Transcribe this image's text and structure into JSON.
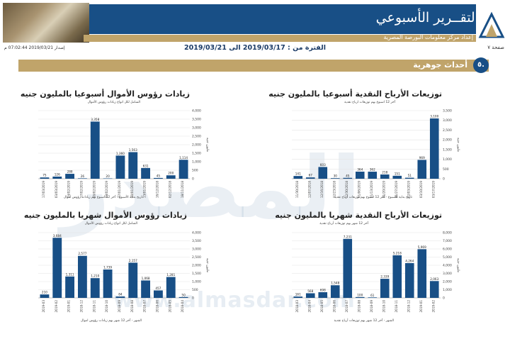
{
  "header": {
    "title": "التقــرير الأسبوعي",
    "subtitle": "إعداد مركز معلومات البورصة المصرية"
  },
  "info": {
    "page": "صفحة ٧",
    "period": "الفترة من : 2019/03/17 الى 2019/03/21",
    "issued": "إصدار 2019/03/21 07:02:44 م"
  },
  "section": {
    "number": "٥.",
    "title": "أحداث جوهرية"
  },
  "watermark": {
    "big": "المصدر",
    "url": "www.almasdar.com"
  },
  "colors": {
    "banner": "#184f86",
    "gold": "#c0a46a",
    "bar": "#184f86"
  },
  "chart_data": [
    {
      "id": "weekly-dividends",
      "type": "bar",
      "title": "توزيعات الأرباح النقدية أسبوعيا بالمليون جنيه",
      "subtitle": "آخر 12 اسبوع بهم توزيعات ارباح نقدية",
      "xlabel": "تاريخ بداية الاسبوع - آخر 12 اسبوع بهم توزيعات أرباح نقدية",
      "ylabel": "مليون جنيه",
      "ylim": [
        0,
        3500
      ],
      "yticks": [
        "0",
        "500",
        "1,000",
        "1,500",
        "2,000",
        "2,500",
        "3,000",
        "3,500"
      ],
      "categories": [
        "11/30/2018",
        "12/07/2018",
        "12/16/2018",
        "12/23/2018",
        "12/30/2018",
        "01/06/2019",
        "01/13/2019",
        "01/20/2019",
        "01/27/2019",
        "02/03/2019",
        "03/10/2019",
        "03/17/2019"
      ],
      "values": [
        141,
        67,
        603,
        30,
        45,
        364,
        362,
        218,
        151,
        51,
        969,
        3100
      ],
      "labels": [
        "141",
        "67",
        "603",
        "30",
        "45",
        "364",
        "362",
        "218",
        "151",
        "51",
        "969",
        "3,100"
      ]
    },
    {
      "id": "weekly-capital",
      "type": "bar",
      "title": "زيادات رؤوس الأموال أسبوعيا بالمليون جنيه",
      "subtitle": "الشامل لكل انواع زيادات رؤوس الأموال",
      "xlabel": "تاريخ بداية الأسبوع - آخر 12 اسبوع بهم زيادات رؤوس أموال",
      "ylabel": "مليون جنيه",
      "ylim": [
        0,
        4000
      ],
      "yticks": [
        "0",
        "500",
        "1,000",
        "1,500",
        "2,000",
        "2,500",
        "3,000",
        "3,500",
        "4,000"
      ],
      "categories": [
        "17/03/2019",
        "03/03/2019",
        "24/02/2019",
        "17/02/2019",
        "10/02/2019",
        "03/02/2019",
        "27/01/2019",
        "20/01/2019",
        "13/01/2019",
        "16/12/2018",
        "02/12/2018",
        "18/11/2018"
      ],
      "values": [
        75,
        126,
        288,
        26,
        3358,
        20,
        1360,
        1563,
        631,
        45,
        200,
        1114
      ],
      "labels": [
        "75",
        "126",
        "288",
        "26",
        "3,358",
        "20",
        "1,360",
        "1,563",
        "631",
        "45",
        "200",
        "1,114"
      ]
    },
    {
      "id": "monthly-dividends",
      "type": "bar",
      "title": "توزيعات الأرباح النقدية شهريا بالمليون جنيه",
      "subtitle": "آخر 12 شهر بهم توزيعات أرباح نقدية",
      "xlabel": "الشهر - آخر 12 شهر بهم توزيعات أرباح نقدية",
      "ylabel": "مليون جنيه",
      "ylim": [
        0,
        8000
      ],
      "yticks": [
        "0",
        "1,000",
        "2,000",
        "3,000",
        "4,000",
        "5,000",
        "6,000",
        "7,000",
        "8,000"
      ],
      "categories": [
        "2018-03",
        "2018-04",
        "2018-05",
        "2018-06",
        "2018-07",
        "2018-08",
        "2018-09",
        "2018-10",
        "2018-11",
        "2018-12",
        "2019-01",
        "2019-02"
      ],
      "values": [
        161,
        568,
        698,
        1548,
        7231,
        100,
        61,
        2339,
        5218,
        4264,
        5969,
        2063
      ],
      "labels": [
        "161",
        "568",
        "698",
        "1,548",
        "7,231",
        "100",
        "61",
        "2,339",
        "5,218",
        "4,264",
        "5,969",
        "2,063"
      ]
    },
    {
      "id": "monthly-capital",
      "type": "bar",
      "title": "زيادات رؤوس الأموال شهريا بالمليون جنيه",
      "subtitle": "الشامل لكل انواع زيادات رؤوس الأموال",
      "xlabel": "الشهر - آخر 12 شهر بهم زيادات رؤوس اموال",
      "ylabel": "مليون جنيه",
      "ylim": [
        0,
        4000
      ],
      "yticks": [
        "0",
        "500",
        "1,000",
        "1,500",
        "2,000",
        "2,500",
        "3,000",
        "3,500",
        "4,000"
      ],
      "categories": [
        "2019-03",
        "2019-02",
        "2019-01",
        "2018-12",
        "2018-11",
        "2018-10",
        "2018-09",
        "2018-08",
        "2018-07",
        "2018-06",
        "2018-05",
        "2018-04"
      ],
      "values": [
        210,
        3684,
        1311,
        2577,
        1210,
        1739,
        84,
        2157,
        1068,
        457,
        1281,
        50
      ],
      "labels": [
        "210",
        "3,684",
        "1,311",
        "2,577",
        "1,210",
        "1,739",
        "84",
        "2,157",
        "1,068",
        "457",
        "1,281",
        "50"
      ]
    }
  ]
}
